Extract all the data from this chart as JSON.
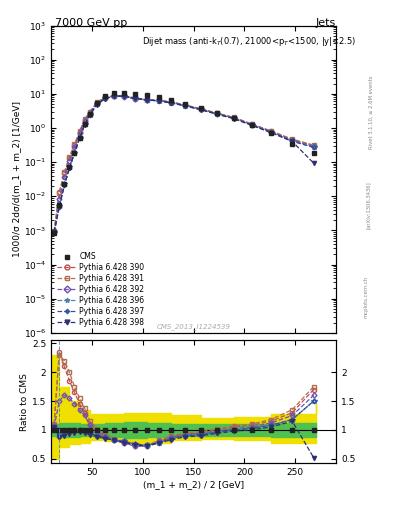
{
  "title_top": "7000 GeV pp",
  "title_right": "Jets",
  "annotation": "Dijet mass (anti-k$_T$(0.7), 21000<p$_T$<1500, |y|<2.5)",
  "watermark": "CMS_2013_I1224539",
  "rivet_text": "Rivet 3.1.10, ≥ 2.6M events",
  "arxiv_text": "[arXiv:1306.3436]",
  "mcplots_text": "mcplots.cern.ch",
  "xlabel": "(m_1 + m_2) / 2 [GeV]",
  "ylabel_top": "1000/σ 2dσ/d(m_1 + m_2) [1/GeV]",
  "ylabel_bottom": "Ratio to CMS",
  "xlim": [
    10,
    290
  ],
  "ylim_top_lo": 1e-06,
  "ylim_top_hi": 1000.0,
  "ylim_bottom_lo": 0.42,
  "ylim_bottom_hi": 2.55,
  "x_data": [
    13,
    18,
    23,
    28,
    33,
    38,
    43,
    48,
    55,
    63,
    72,
    82,
    92,
    104,
    116,
    128,
    142,
    157,
    173,
    190,
    207,
    226,
    247,
    268
  ],
  "cms_y": [
    0.00085,
    0.0055,
    0.023,
    0.072,
    0.19,
    0.52,
    1.3,
    2.6,
    5.5,
    8.5,
    10.5,
    10.8,
    10.0,
    9.2,
    8.0,
    6.5,
    5.0,
    3.8,
    2.7,
    1.9,
    1.2,
    0.7,
    0.35,
    0.18
  ],
  "pythia390_ratio": [
    1.1,
    2.35,
    2.1,
    1.85,
    1.65,
    1.45,
    1.3,
    1.1,
    1.0,
    0.9,
    0.82,
    0.78,
    0.72,
    0.72,
    0.8,
    0.88,
    0.93,
    0.95,
    1.0,
    1.05,
    1.08,
    1.15,
    1.3,
    1.7
  ],
  "pythia391_ratio": [
    1.1,
    2.3,
    2.2,
    2.0,
    1.75,
    1.55,
    1.38,
    1.15,
    1.02,
    0.93,
    0.85,
    0.8,
    0.74,
    0.73,
    0.82,
    0.9,
    0.95,
    0.97,
    1.02,
    1.07,
    1.1,
    1.18,
    1.35,
    1.75
  ],
  "pythia392_ratio": [
    1.05,
    1.5,
    1.6,
    1.55,
    1.45,
    1.35,
    1.25,
    1.08,
    0.97,
    0.88,
    0.82,
    0.77,
    0.72,
    0.72,
    0.8,
    0.87,
    0.92,
    0.94,
    0.98,
    1.02,
    1.05,
    1.12,
    1.25,
    1.6
  ],
  "pythia396_ratio": [
    1.05,
    0.95,
    0.98,
    1.0,
    1.0,
    1.0,
    0.98,
    0.94,
    0.9,
    0.87,
    0.83,
    0.8,
    0.76,
    0.73,
    0.78,
    0.85,
    0.9,
    0.92,
    0.96,
    1.0,
    1.03,
    1.08,
    1.18,
    1.5
  ],
  "pythia397_ratio": [
    1.05,
    0.88,
    0.93,
    0.96,
    0.98,
    0.99,
    0.98,
    0.94,
    0.9,
    0.87,
    0.83,
    0.8,
    0.76,
    0.73,
    0.78,
    0.85,
    0.9,
    0.92,
    0.96,
    1.0,
    1.03,
    1.08,
    1.18,
    1.5
  ],
  "pythia398_ratio": [
    1.05,
    0.88,
    0.9,
    0.93,
    0.95,
    0.96,
    0.95,
    0.92,
    0.88,
    0.85,
    0.82,
    0.78,
    0.74,
    0.72,
    0.77,
    0.83,
    0.88,
    0.9,
    0.94,
    0.98,
    1.0,
    1.05,
    1.15,
    0.52
  ],
  "green_band_x": [
    10,
    18,
    28,
    38,
    48,
    63,
    82,
    104,
    128,
    157,
    190,
    226,
    270
  ],
  "green_band_lo": [
    0.9,
    0.88,
    0.88,
    0.9,
    0.9,
    0.88,
    0.86,
    0.88,
    0.9,
    0.9,
    0.9,
    0.88,
    0.88
  ],
  "green_band_hi": [
    1.1,
    1.12,
    1.12,
    1.1,
    1.1,
    1.12,
    1.14,
    1.12,
    1.1,
    1.1,
    1.1,
    1.12,
    1.12
  ],
  "yellow_band_x": [
    10,
    18,
    28,
    38,
    48,
    63,
    82,
    104,
    128,
    157,
    190,
    226,
    270
  ],
  "yellow_band_lo": [
    0.5,
    0.7,
    0.75,
    0.78,
    0.82,
    0.8,
    0.78,
    0.78,
    0.82,
    0.85,
    0.82,
    0.78,
    0.78
  ],
  "yellow_band_hi": [
    2.3,
    1.75,
    1.5,
    1.35,
    1.28,
    1.28,
    1.3,
    1.3,
    1.25,
    1.2,
    1.22,
    1.28,
    1.45
  ],
  "colors": {
    "cms": "#222222",
    "pythia390": "#c05050",
    "pythia391": "#b07050",
    "pythia392": "#7050b0",
    "pythia396": "#5080b0",
    "pythia397": "#3050a0",
    "pythia398": "#303070"
  },
  "legend_labels": [
    "CMS",
    "Pythia 6.428 390",
    "Pythia 6.428 391",
    "Pythia 6.428 392",
    "Pythia 6.428 396",
    "Pythia 6.428 397",
    "Pythia 6.428 398"
  ]
}
